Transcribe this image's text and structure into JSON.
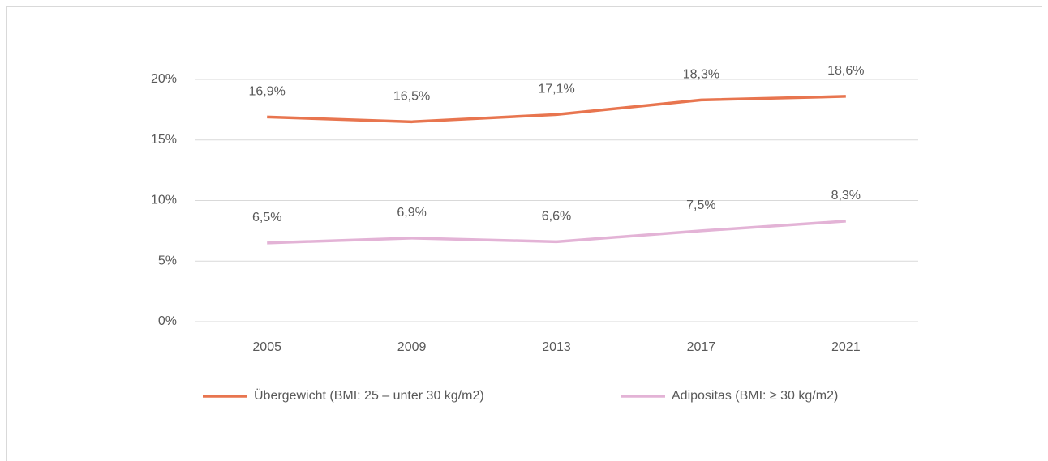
{
  "chart_data": {
    "type": "line",
    "categories": [
      "2005",
      "2009",
      "2013",
      "2017",
      "2021"
    ],
    "series": [
      {
        "name": "Übergewicht (BMI: 25 – unter 30 kg/m2)",
        "color": "#e8754f",
        "values": [
          16.9,
          16.5,
          17.1,
          18.3,
          18.6
        ],
        "value_labels": [
          "16,9%",
          "16,5%",
          "17,1%",
          "18,3%",
          "18,6%"
        ]
      },
      {
        "name": "Adipositas (BMI: ≥ 30 kg/m2)",
        "color": "#e3b3d6",
        "values": [
          6.5,
          6.9,
          6.6,
          7.5,
          8.3
        ],
        "value_labels": [
          "6,5%",
          "6,9%",
          "6,6%",
          "7,5%",
          "8,3%"
        ]
      }
    ],
    "ylim": [
      0,
      20
    ],
    "yticks": [
      {
        "value": 0,
        "label": "0%"
      },
      {
        "value": 5,
        "label": "5%"
      },
      {
        "value": 10,
        "label": "10%"
      },
      {
        "value": 15,
        "label": "15%"
      },
      {
        "value": 20,
        "label": "20%"
      }
    ],
    "grid": true,
    "legend": "bottom"
  }
}
